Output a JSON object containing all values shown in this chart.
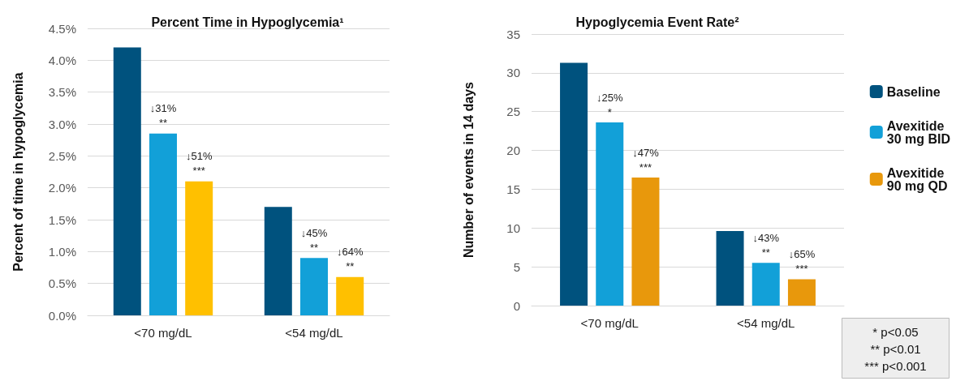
{
  "chart_data": [
    {
      "type": "bar",
      "title": "Percent Time in Hypoglycemia¹",
      "ylabel": "Percent of time in hypoglycemia",
      "categories": [
        "<70 mg/dL",
        "<54 mg/dL"
      ],
      "series": [
        {
          "color": "#00527e",
          "values": [
            4.2,
            1.7
          ]
        },
        {
          "color": "#12a0d8",
          "values": [
            2.85,
            0.9
          ]
        },
        {
          "color": "#ffc000",
          "values": [
            2.1,
            0.6
          ]
        }
      ],
      "ylim": [
        0,
        4.5
      ],
      "yticks": [
        {
          "value": 0,
          "label": "0.0%"
        },
        {
          "value": 0.5,
          "label": "0.5%"
        },
        {
          "value": 1,
          "label": "1.0%"
        },
        {
          "value": 1.5,
          "label": "1.5%"
        },
        {
          "value": 2,
          "label": "2.0%"
        },
        {
          "value": 2.5,
          "label": "2.5%"
        },
        {
          "value": 3,
          "label": "3.0%"
        },
        {
          "value": 3.5,
          "label": "3.5%"
        },
        {
          "value": 4,
          "label": "4.0%"
        },
        {
          "value": 4.5,
          "label": "4.5%"
        }
      ],
      "grid": "y",
      "legend": false,
      "annotations": [
        "↓31%\n**",
        "↓51%\n***",
        "↓45%\n**",
        "↓64%\n**"
      ]
    },
    {
      "type": "bar",
      "title": "Hypoglycemia Event Rate²",
      "ylabel": "Number of events in 14 days",
      "categories": [
        "<70 mg/dL",
        "<54 mg/dL"
      ],
      "series": [
        {
          "name": "Baseline",
          "color": "#00527e",
          "values": [
            31.3,
            9.6
          ]
        },
        {
          "name": "Avexitide 30 mg BID",
          "color": "#12a0d8",
          "values": [
            23.6,
            5.5
          ]
        },
        {
          "name": "Avexitide 90 mg QD",
          "color": "#e8980c",
          "values": [
            16.5,
            3.4
          ]
        }
      ],
      "ylim": [
        0,
        35
      ],
      "yticks": [
        0,
        5,
        10,
        15,
        20,
        25,
        30,
        35
      ],
      "grid": "y",
      "legend": "right",
      "annotations": [
        "↓25%\n*",
        "↓47%\n***",
        "↓43%\n**",
        "↓65%\n***",
        "* p<0.05",
        "** p<0.01",
        "*** p<0.001"
      ]
    }
  ]
}
